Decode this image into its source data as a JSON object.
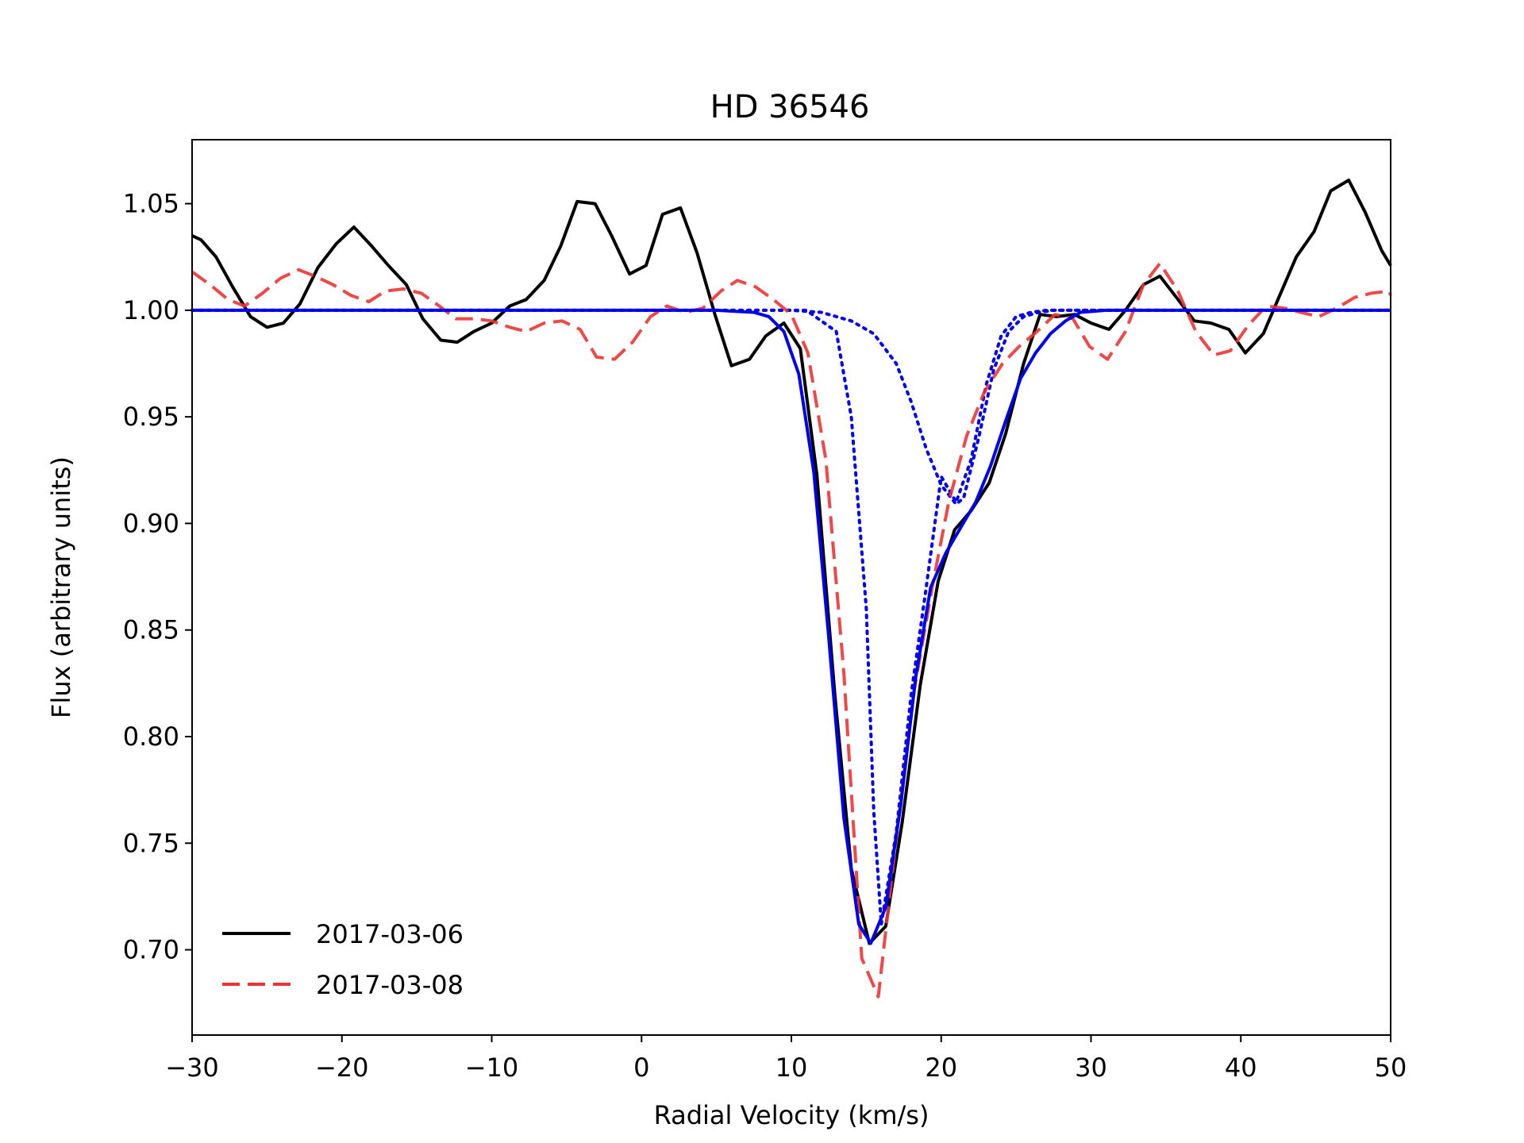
{
  "chart_data": {
    "type": "line",
    "title": "HD 36546",
    "xlabel": "Radial Velocity (km/s)",
    "ylabel": "Flux (arbitrary units)",
    "xlim": [
      -30,
      50
    ],
    "ylim": [
      0.66,
      1.08
    ],
    "x_ticks": [
      -30,
      -20,
      -10,
      0,
      10,
      20,
      30,
      40,
      50
    ],
    "x_tick_labels": [
      "−30",
      "−20",
      "−10",
      "0",
      "10",
      "20",
      "30",
      "40",
      "50"
    ],
    "y_ticks": [
      0.7,
      0.75,
      0.8,
      0.85,
      0.9,
      0.95,
      1.0,
      1.05
    ],
    "y_tick_labels": [
      "0.70",
      "0.75",
      "0.80",
      "0.85",
      "0.90",
      "0.95",
      "1.00",
      "1.05"
    ],
    "grid": false,
    "legend_position": "lower-left",
    "series": [
      {
        "name": "2017-03-06",
        "color": "#000000",
        "style": "solid",
        "in_legend": true,
        "x": [
          -30,
          -29.4,
          -28.4,
          -27.3,
          -26.1,
          -25.0,
          -23.9,
          -22.8,
          -21.6,
          -20.4,
          -19.2,
          -18.0,
          -16.9,
          -15.7,
          -14.6,
          -13.4,
          -12.3,
          -11.2,
          -10.0,
          -8.8,
          -7.7,
          -6.5,
          -5.4,
          -4.3,
          -3.1,
          -2.0,
          -0.8,
          0.3,
          1.4,
          2.6,
          3.7,
          4.9,
          6.0,
          7.2,
          8.3,
          9.5,
          10.6,
          11.7,
          12.9,
          14.0,
          15.2,
          16.3,
          17.4,
          18.6,
          19.8,
          20.9,
          22.0,
          23.2,
          24.3,
          25.5,
          26.6,
          27.7,
          28.9,
          30.0,
          31.2,
          32.3,
          33.5,
          34.6,
          35.7,
          36.9,
          38.0,
          39.2,
          40.3,
          41.5,
          42.6,
          43.7,
          44.9,
          46.0,
          47.2,
          48.3,
          49.4,
          50.0
        ],
        "y": [
          1.035,
          1.033,
          1.025,
          1.011,
          0.997,
          0.992,
          0.994,
          1.003,
          1.02,
          1.031,
          1.039,
          1.03,
          1.021,
          1.012,
          0.996,
          0.986,
          0.985,
          0.99,
          0.994,
          1.002,
          1.005,
          1.014,
          1.03,
          1.051,
          1.05,
          1.035,
          1.017,
          1.021,
          1.045,
          1.048,
          1.027,
          0.998,
          0.974,
          0.977,
          0.988,
          0.994,
          0.982,
          0.923,
          0.82,
          0.738,
          0.703,
          0.711,
          0.76,
          0.824,
          0.873,
          0.897,
          0.906,
          0.919,
          0.942,
          0.975,
          0.998,
          0.997,
          0.998,
          0.994,
          0.991,
          1.0,
          1.012,
          1.016,
          1.006,
          0.995,
          0.994,
          0.991,
          0.98,
          0.989,
          1.007,
          1.025,
          1.037,
          1.056,
          1.061,
          1.046,
          1.028,
          1.021
        ]
      },
      {
        "name": "2017-03-08",
        "color": "#ee3333",
        "style": "dashed",
        "in_legend": true,
        "x": [
          -30,
          -28.8,
          -27.6,
          -26.5,
          -25.3,
          -24.1,
          -22.9,
          -21.8,
          -20.6,
          -19.4,
          -18.2,
          -17.1,
          -15.9,
          -14.7,
          -13.5,
          -12.4,
          -11.2,
          -10.0,
          -8.8,
          -7.7,
          -6.5,
          -5.3,
          -4.1,
          -3.0,
          -1.8,
          -0.6,
          0.6,
          1.7,
          2.9,
          4.1,
          5.3,
          6.4,
          7.6,
          8.8,
          10.0,
          11.1,
          12.3,
          13.5,
          14.7,
          15.8,
          17.0,
          18.2,
          19.4,
          20.5,
          21.7,
          22.9,
          24.1,
          25.2,
          26.4,
          27.6,
          28.8,
          29.9,
          31.1,
          32.3,
          33.5,
          34.6,
          35.8,
          37.0,
          38.2,
          39.3,
          40.5,
          41.7,
          42.9,
          44.0,
          45.2,
          46.4,
          47.6,
          48.7,
          49.9,
          50.0
        ],
        "y": [
          1.018,
          1.012,
          1.005,
          1.002,
          1.008,
          1.015,
          1.019,
          1.016,
          1.012,
          1.007,
          1.004,
          1.009,
          1.01,
          1.008,
          1.002,
          0.996,
          0.996,
          0.995,
          0.992,
          0.99,
          0.994,
          0.995,
          0.991,
          0.978,
          0.977,
          0.985,
          0.997,
          1.002,
          0.999,
          1.001,
          1.009,
          1.014,
          1.011,
          1.005,
          0.998,
          0.98,
          0.93,
          0.83,
          0.696,
          0.678,
          0.752,
          0.822,
          0.87,
          0.91,
          0.941,
          0.962,
          0.975,
          0.983,
          0.99,
          0.998,
          0.996,
          0.983,
          0.977,
          0.99,
          1.012,
          1.022,
          1.009,
          0.99,
          0.979,
          0.981,
          0.993,
          1.002,
          1.001,
          0.999,
          0.997,
          1.001,
          1.006,
          1.008,
          1.009,
          1.007
        ]
      },
      {
        "name": "",
        "color": "#0000ee",
        "style": "solid",
        "in_legend": false,
        "x": [
          -30,
          -20,
          -10,
          0,
          5,
          7.5,
          8.5,
          9.5,
          10.5,
          11.5,
          12.5,
          13.5,
          14.5,
          15.3,
          16.3,
          17.3,
          18.3,
          19.3,
          20.3,
          21.3,
          22.3,
          23.3,
          24.3,
          25.3,
          26.3,
          27.3,
          28.3,
          29.3,
          31.0,
          35,
          40,
          45,
          50
        ],
        "y": [
          1.0,
          1.0,
          1.0,
          1.0,
          1.0,
          0.999,
          0.997,
          0.99,
          0.97,
          0.924,
          0.846,
          0.762,
          0.712,
          0.703,
          0.72,
          0.768,
          0.828,
          0.87,
          0.886,
          0.898,
          0.91,
          0.927,
          0.948,
          0.968,
          0.98,
          0.989,
          0.995,
          0.999,
          1.0,
          1.0,
          1.0,
          1.0,
          1.0
        ]
      },
      {
        "name": "",
        "color": "#0000ee",
        "style": "dotted",
        "in_legend": false,
        "x": [
          -30,
          -10,
          5,
          11,
          13,
          14,
          15,
          15.5,
          16,
          17,
          18,
          19,
          20,
          21,
          22,
          23,
          24,
          25,
          26,
          27,
          28,
          30,
          40,
          50
        ],
        "y": [
          1.0,
          1.0,
          1.0,
          1.0,
          0.99,
          0.95,
          0.86,
          0.765,
          0.712,
          0.755,
          0.82,
          0.87,
          0.922,
          0.91,
          0.93,
          0.965,
          0.988,
          0.997,
          0.999,
          1.0,
          1.0,
          1.0,
          1.0,
          1.0
        ]
      },
      {
        "name": "",
        "color": "#0000ee",
        "style": "dotted",
        "in_legend": false,
        "x": [
          -30,
          -10,
          0,
          5,
          8,
          10,
          12,
          14,
          15.5,
          17,
          18,
          19,
          20,
          21,
          21.5,
          22.5,
          23.5,
          24.5,
          25.5,
          26.5,
          27.5,
          30,
          40,
          50
        ],
        "y": [
          1.0,
          1.0,
          1.0,
          1.0,
          1.0,
          1.0,
          0.999,
          0.995,
          0.989,
          0.975,
          0.957,
          0.935,
          0.918,
          0.909,
          0.912,
          0.94,
          0.972,
          0.99,
          0.997,
          0.999,
          1.0,
          1.0,
          1.0,
          1.0
        ]
      }
    ]
  }
}
